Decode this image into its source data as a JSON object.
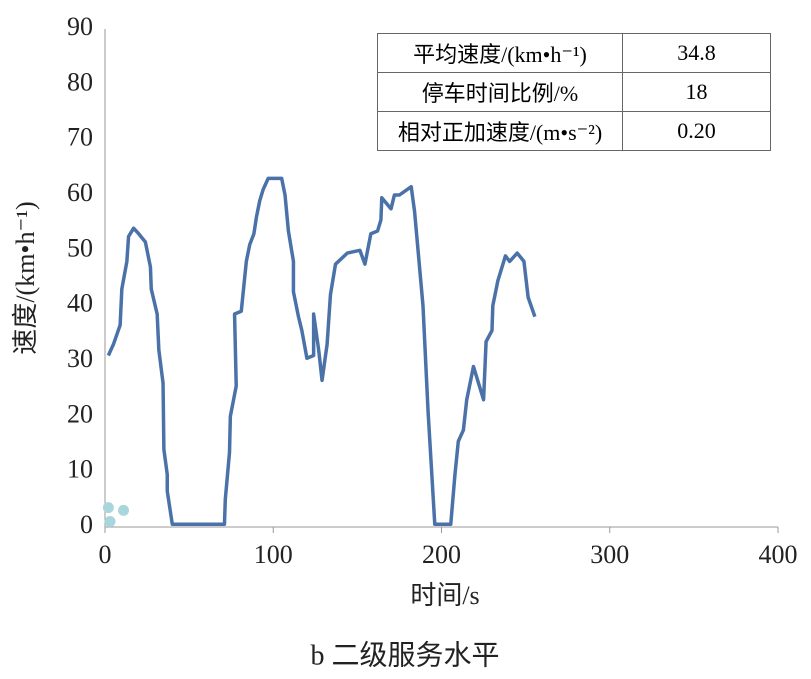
{
  "chart_data": {
    "type": "line",
    "title": "b 二级服务水平",
    "xlabel": "时间/s",
    "ylabel": "速度/(km•h⁻¹)",
    "xlim": [
      0,
      400
    ],
    "xticks": [
      0,
      100,
      200,
      300,
      400
    ],
    "ylim": [
      0,
      90
    ],
    "yticks": [
      0,
      10,
      20,
      30,
      40,
      50,
      60,
      70,
      80,
      90
    ],
    "series": [
      {
        "color": "#4a72a8",
        "x": [
          2,
          5,
          9,
          10,
          13,
          14,
          17,
          20,
          24,
          27,
          27.5,
          31,
          32,
          34.5,
          35,
          37,
          37,
          40,
          71,
          71.5,
          74,
          74.5,
          78,
          77,
          81,
          84,
          86,
          88.5,
          90,
          92,
          94,
          97,
          105,
          107,
          109,
          112,
          112,
          115,
          117,
          120,
          124,
          124,
          127,
          129,
          132,
          134,
          137,
          144,
          151.5,
          154.5,
          158,
          162,
          164,
          164.5,
          170,
          172,
          175,
          182,
          184,
          189,
          192,
          196,
          205.5,
          208,
          210,
          213,
          215,
          219,
          225,
          226.5,
          230,
          230.5,
          233.5,
          238,
          240.5,
          245,
          249,
          251.5,
          255.5
        ],
        "values": [
          31,
          33,
          36.5,
          43,
          48,
          52.5,
          54,
          53,
          51.5,
          47,
          43,
          38.5,
          32,
          26,
          14,
          9.5,
          6.5,
          0.5,
          0.5,
          5,
          13.5,
          20,
          25.5,
          38.5,
          39,
          48,
          51,
          53,
          56,
          59,
          61,
          63,
          63,
          60,
          53.5,
          48,
          42.5,
          38,
          35.5,
          30.5,
          31,
          38.5,
          32,
          26.5,
          33,
          42,
          47.5,
          49.5,
          50,
          47.5,
          53,
          53.5,
          55.5,
          59.5,
          57.5,
          60,
          60,
          61.5,
          57,
          40,
          21,
          0.5,
          0.5,
          9.5,
          15.5,
          17.5,
          23,
          29,
          23,
          33.5,
          35.5,
          40,
          44.5,
          49,
          48,
          49.5,
          48,
          41.5,
          38
        ]
      },
      {
        "type": "scatter",
        "color": "#a9d6dc",
        "x": [
          2,
          3,
          11
        ],
        "values": [
          3.5,
          1,
          3
        ]
      }
    ],
    "table": {
      "rows": [
        [
          "平均速度/(km•h⁻¹)",
          "34.8"
        ],
        [
          "停车时间比例/%",
          "18"
        ],
        [
          "相对正加速度/(m•s⁻²)",
          "0.20"
        ]
      ]
    }
  }
}
